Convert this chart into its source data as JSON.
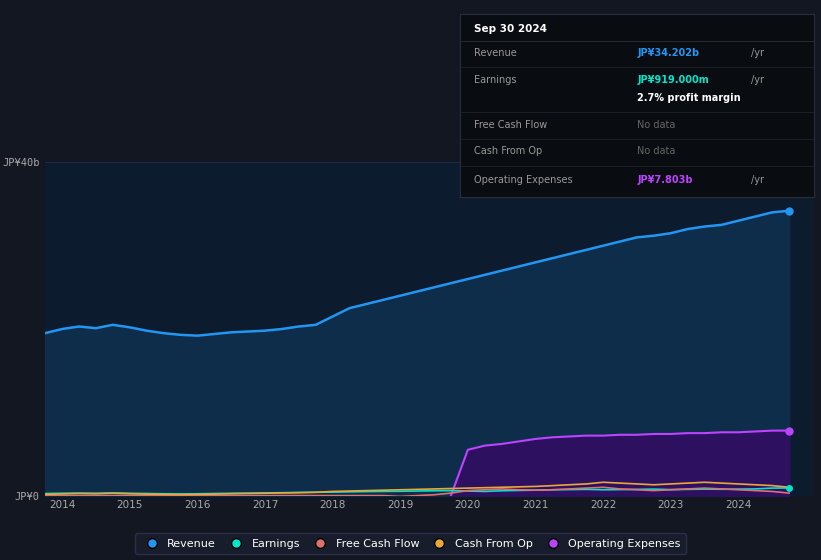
{
  "bg_color": "#131722",
  "plot_bg_color": "#0d1b2e",
  "grid_color": "#1e3050",
  "years": [
    2013.75,
    2014.0,
    2014.25,
    2014.5,
    2014.75,
    2015.0,
    2015.25,
    2015.5,
    2015.75,
    2016.0,
    2016.25,
    2016.5,
    2016.75,
    2017.0,
    2017.25,
    2017.5,
    2017.75,
    2018.0,
    2018.25,
    2018.5,
    2018.75,
    2019.0,
    2019.25,
    2019.5,
    2019.75,
    2020.0,
    2020.25,
    2020.5,
    2020.75,
    2021.0,
    2021.25,
    2021.5,
    2021.75,
    2022.0,
    2022.25,
    2022.5,
    2022.75,
    2023.0,
    2023.25,
    2023.5,
    2023.75,
    2024.0,
    2024.25,
    2024.5,
    2024.75
  ],
  "revenue": [
    19.5,
    20.0,
    20.3,
    20.1,
    20.5,
    20.2,
    19.8,
    19.5,
    19.3,
    19.2,
    19.4,
    19.6,
    19.7,
    19.8,
    20.0,
    20.3,
    20.5,
    21.5,
    22.5,
    23.0,
    23.5,
    24.0,
    24.5,
    25.0,
    25.5,
    26.0,
    26.5,
    27.0,
    27.5,
    28.0,
    28.5,
    29.0,
    29.5,
    30.0,
    30.5,
    31.0,
    31.2,
    31.5,
    32.0,
    32.3,
    32.5,
    33.0,
    33.5,
    34.0,
    34.2
  ],
  "earnings": [
    0.25,
    0.28,
    0.3,
    0.28,
    0.32,
    0.28,
    0.25,
    0.22,
    0.2,
    0.22,
    0.25,
    0.28,
    0.3,
    0.32,
    0.35,
    0.38,
    0.4,
    0.42,
    0.45,
    0.48,
    0.5,
    0.52,
    0.55,
    0.58,
    0.6,
    0.55,
    0.5,
    0.58,
    0.62,
    0.65,
    0.7,
    0.72,
    0.75,
    0.7,
    0.72,
    0.75,
    0.78,
    0.72,
    0.75,
    0.78,
    0.76,
    0.78,
    0.8,
    0.9,
    0.919
  ],
  "free_cash_flow": [
    0.0,
    0.0,
    0.0,
    0.0,
    0.0,
    0.0,
    0.0,
    0.0,
    0.0,
    0.0,
    0.0,
    0.0,
    0.0,
    0.0,
    0.0,
    0.0,
    0.0,
    0.0,
    0.0,
    0.0,
    0.0,
    -0.1,
    0.0,
    0.1,
    0.3,
    0.6,
    0.7,
    0.8,
    0.7,
    0.65,
    0.7,
    0.8,
    0.9,
    1.0,
    0.8,
    0.7,
    0.6,
    0.7,
    0.8,
    0.9,
    0.8,
    0.7,
    0.6,
    0.5,
    0.3
  ],
  "cash_from_op": [
    0.15,
    0.2,
    0.25,
    0.22,
    0.28,
    0.22,
    0.18,
    0.15,
    0.12,
    0.15,
    0.18,
    0.22,
    0.25,
    0.28,
    0.32,
    0.35,
    0.4,
    0.5,
    0.55,
    0.6,
    0.65,
    0.7,
    0.75,
    0.8,
    0.85,
    0.9,
    0.95,
    1.0,
    1.05,
    1.1,
    1.2,
    1.3,
    1.4,
    1.6,
    1.5,
    1.4,
    1.3,
    1.4,
    1.5,
    1.6,
    1.5,
    1.4,
    1.3,
    1.2,
    1.0
  ],
  "op_expenses_x": [
    2019.75,
    2020.0,
    2020.25,
    2020.5,
    2020.75,
    2021.0,
    2021.25,
    2021.5,
    2021.75,
    2022.0,
    2022.25,
    2022.5,
    2022.75,
    2023.0,
    2023.25,
    2023.5,
    2023.75,
    2024.0,
    2024.25,
    2024.5,
    2024.75
  ],
  "op_expenses": [
    0.0,
    5.5,
    6.0,
    6.2,
    6.5,
    6.8,
    7.0,
    7.1,
    7.2,
    7.2,
    7.3,
    7.3,
    7.4,
    7.4,
    7.5,
    7.5,
    7.6,
    7.6,
    7.7,
    7.8,
    7.803
  ],
  "ylim": [
    0,
    40
  ],
  "xlim": [
    2013.75,
    2025.1
  ],
  "yticks": [
    0,
    40
  ],
  "ytick_labels": [
    "JP¥0",
    "JP¥40b"
  ],
  "xticks": [
    2014,
    2015,
    2016,
    2017,
    2018,
    2019,
    2020,
    2021,
    2022,
    2023,
    2024
  ],
  "revenue_color": "#2196f3",
  "revenue_fill_color": "#0d2d4a",
  "earnings_color": "#00e5cc",
  "fcf_color": "#e07070",
  "cashop_color": "#e8a838",
  "opex_color": "#bb44ff",
  "opex_fill_color": "#2d1060",
  "tooltip_bg": "#090c10",
  "tooltip_border": "#2a2e39",
  "tooltip_title": "Sep 30 2024",
  "tooltip_revenue_val": "JP¥34.202b",
  "tooltip_earnings_val": "JP¥919.000m",
  "tooltip_profit_margin": "2.7% profit margin",
  "tooltip_fcf_val": "No data",
  "tooltip_cashop_val": "No data",
  "tooltip_opex_val": "JP¥7.803b",
  "legend_items": [
    "Revenue",
    "Earnings",
    "Free Cash Flow",
    "Cash From Op",
    "Operating Expenses"
  ],
  "legend_colors": [
    "#2196f3",
    "#00e5cc",
    "#e07070",
    "#e8a838",
    "#bb44ff"
  ]
}
